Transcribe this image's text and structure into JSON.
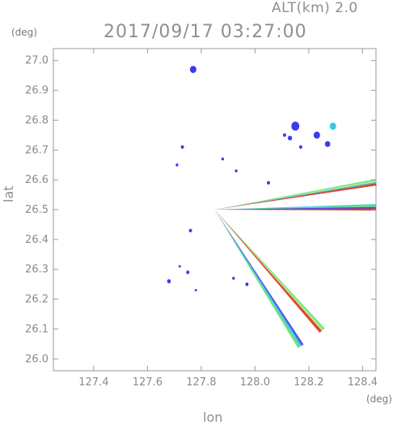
{
  "header": {
    "alt_label": "ALT(km)  2.0",
    "datetime": "2017/09/17  03:27:00"
  },
  "chart_data": {
    "type": "scatter",
    "title": "2017/09/17  03:27:00",
    "xlabel": "lon",
    "ylabel": "lat",
    "x_unit": "(deg)",
    "y_unit": "(deg)",
    "xlim": [
      127.25,
      128.45
    ],
    "ylim": [
      25.96,
      27.04
    ],
    "xticks": [
      127.4,
      127.6,
      127.8,
      128.0,
      128.2,
      128.4
    ],
    "yticks": [
      26.0,
      26.1,
      26.2,
      26.3,
      26.4,
      26.5,
      26.6,
      26.7,
      26.8,
      26.9,
      27.0
    ],
    "xtick_labels": [
      "127.4",
      "127.6",
      "127.8",
      "128.0",
      "128.2",
      "128.4"
    ],
    "ytick_labels": [
      "26.0",
      "26.1",
      "26.2",
      "26.3",
      "26.4",
      "26.5",
      "26.6",
      "26.7",
      "26.8",
      "26.9",
      "27.0"
    ],
    "grid": false,
    "colors": {
      "axis": "#9a9a9a",
      "blue": "#3b3bf0",
      "cyan": "#38c8e8",
      "green": "#66e07a",
      "yellowgreen": "#b8ee7a",
      "red": "#e03020"
    },
    "beams": [
      {
        "from": [
          127.85,
          26.5
        ],
        "to": [
          128.45,
          26.592
        ],
        "colors": [
          "#66e07a",
          "#b8ee7a",
          "#38c8e8",
          "#e03020"
        ]
      },
      {
        "from": [
          127.85,
          26.5
        ],
        "to": [
          128.45,
          26.508
        ],
        "colors": [
          "#38c8e8",
          "#66e07a",
          "#3b3bf0",
          "#e03020"
        ]
      },
      {
        "from": [
          127.85,
          26.5
        ],
        "to": [
          128.25,
          26.095
        ],
        "colors": [
          "#66e07a",
          "#b8ee7a",
          "#e03020"
        ]
      },
      {
        "from": [
          127.85,
          26.5
        ],
        "to": [
          128.17,
          26.042
        ],
        "colors": [
          "#3b3bf0",
          "#38c8e8",
          "#66e07a"
        ]
      }
    ],
    "echoes": [
      {
        "x": 127.77,
        "y": 26.97,
        "r": 0.012,
        "color": "#3b3bf0"
      },
      {
        "x": 128.15,
        "y": 26.78,
        "r": 0.015,
        "color": "#3b3bf0"
      },
      {
        "x": 128.29,
        "y": 26.78,
        "r": 0.012,
        "color": "#38c8e8"
      },
      {
        "x": 128.23,
        "y": 26.75,
        "r": 0.012,
        "color": "#3b3bf0"
      },
      {
        "x": 128.27,
        "y": 26.72,
        "r": 0.01,
        "color": "#3b3bf0"
      },
      {
        "x": 128.13,
        "y": 26.74,
        "r": 0.008,
        "color": "#3b3bf0"
      },
      {
        "x": 128.11,
        "y": 26.75,
        "r": 0.006,
        "color": "#3b3bf0"
      },
      {
        "x": 128.17,
        "y": 26.71,
        "r": 0.006,
        "color": "#3b3bf0"
      },
      {
        "x": 127.73,
        "y": 26.71,
        "r": 0.006,
        "color": "#3b3bf0"
      },
      {
        "x": 127.88,
        "y": 26.67,
        "r": 0.005,
        "color": "#3b3bf0"
      },
      {
        "x": 127.71,
        "y": 26.65,
        "r": 0.005,
        "color": "#3b3bf0"
      },
      {
        "x": 127.93,
        "y": 26.63,
        "r": 0.005,
        "color": "#3b3bf0"
      },
      {
        "x": 128.05,
        "y": 26.59,
        "r": 0.006,
        "color": "#3b3bf0"
      },
      {
        "x": 127.76,
        "y": 26.43,
        "r": 0.006,
        "color": "#3b3bf0"
      },
      {
        "x": 127.75,
        "y": 26.29,
        "r": 0.006,
        "color": "#3b3bf0"
      },
      {
        "x": 127.72,
        "y": 26.31,
        "r": 0.004,
        "color": "#3b3bf0"
      },
      {
        "x": 127.68,
        "y": 26.26,
        "r": 0.007,
        "color": "#3b3bf0"
      },
      {
        "x": 127.92,
        "y": 26.27,
        "r": 0.005,
        "color": "#3b3bf0"
      },
      {
        "x": 127.97,
        "y": 26.25,
        "r": 0.006,
        "color": "#3b3bf0"
      },
      {
        "x": 127.78,
        "y": 26.23,
        "r": 0.004,
        "color": "#3b3bf0"
      }
    ]
  }
}
